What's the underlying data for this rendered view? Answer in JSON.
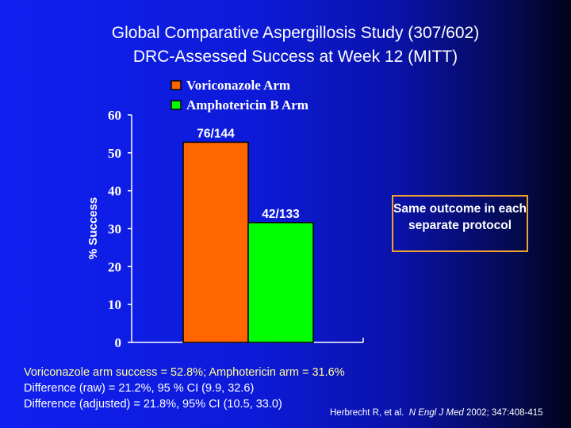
{
  "title_line1": "Global Comparative Aspergillosis Study (307/602)",
  "title_line2": "DRC-Assessed Success at Week 12 (MITT)",
  "chart_data": {
    "type": "bar",
    "categories": [
      "Voriconazole Arm",
      "Amphotericin B Arm"
    ],
    "values": [
      52.8,
      31.6
    ],
    "data_labels": [
      "76/144",
      "42/133"
    ],
    "colors": [
      "#ff6600",
      "#00ff00"
    ],
    "ylabel": "% Success",
    "xlabel": "",
    "ylim": [
      0,
      60
    ],
    "yticks": [
      "0",
      "10",
      "20",
      "30",
      "40",
      "50",
      "60"
    ],
    "legend": [
      "Voriconazole Arm",
      "Amphotericin B Arm"
    ],
    "legend_position": "top",
    "grid": false
  },
  "callout": "Same outcome in each separate protocol",
  "notes": [
    "Voriconazole arm success = 52.8%; Amphotericin arm =  31.6%",
    "Difference (raw) = 21.2%, 95 % CI (9.9, 32.6)",
    "Difference (adjusted) = 21.8%, 95% CI (10.5, 33.0)"
  ],
  "citation": {
    "authors": "Herbrecht R, et al.",
    "journal": "N Engl J Med",
    "rest": "2002; 347:408-415"
  }
}
